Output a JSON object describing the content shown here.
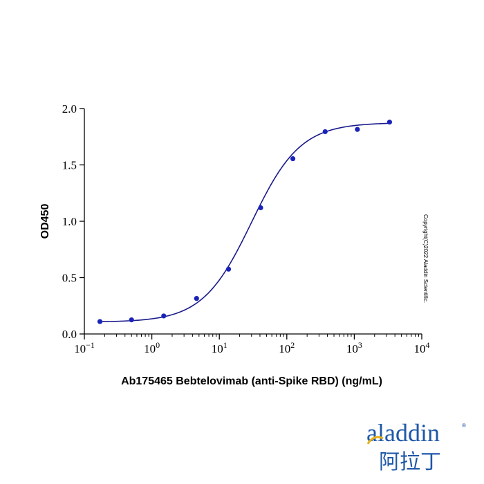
{
  "chart_data": {
    "type": "scatter",
    "xscale": "log",
    "xlim": [
      0.1,
      10000
    ],
    "ylim": [
      0,
      2.0
    ],
    "xlabel": "Ab175465 Bebtelovimab (anti-Spike RBD) (ng/mL)",
    "ylabel": "OD450",
    "x_ticks": [
      {
        "base": "10",
        "exp": "-1",
        "value": 0.1
      },
      {
        "base": "10",
        "exp": "0",
        "value": 1
      },
      {
        "base": "10",
        "exp": "1",
        "value": 10
      },
      {
        "base": "10",
        "exp": "2",
        "value": 100
      },
      {
        "base": "10",
        "exp": "3",
        "value": 1000
      },
      {
        "base": "10",
        "exp": "4",
        "value": 10000
      }
    ],
    "y_ticks": [
      {
        "label": "0.0",
        "value": 0
      },
      {
        "label": "0.5",
        "value": 0.5
      },
      {
        "label": "1.0",
        "value": 1.0
      },
      {
        "label": "1.5",
        "value": 1.5
      },
      {
        "label": "2.0",
        "value": 2.0
      }
    ],
    "points": {
      "x": [
        0.17,
        0.5,
        1.5,
        4.6,
        13.7,
        41,
        123,
        370,
        1111,
        3333
      ],
      "y": [
        0.11,
        0.125,
        0.16,
        0.315,
        0.575,
        1.12,
        1.555,
        1.795,
        1.815,
        1.88
      ]
    },
    "fit": {
      "type": "4PL",
      "bottom": 0.105,
      "top": 1.875,
      "ec50": 30,
      "hill": 1.2
    },
    "marker_color": "#1a23b8",
    "line_color": "#1a1a8c",
    "grid": false
  },
  "copyright": "Copyright(C)2022 Aladdin Scientific.",
  "logo": {
    "name": "aladdin",
    "cn": "阿拉丁",
    "reg": "®",
    "color": "#1f58a8",
    "accent_color": "#e8b11a"
  }
}
